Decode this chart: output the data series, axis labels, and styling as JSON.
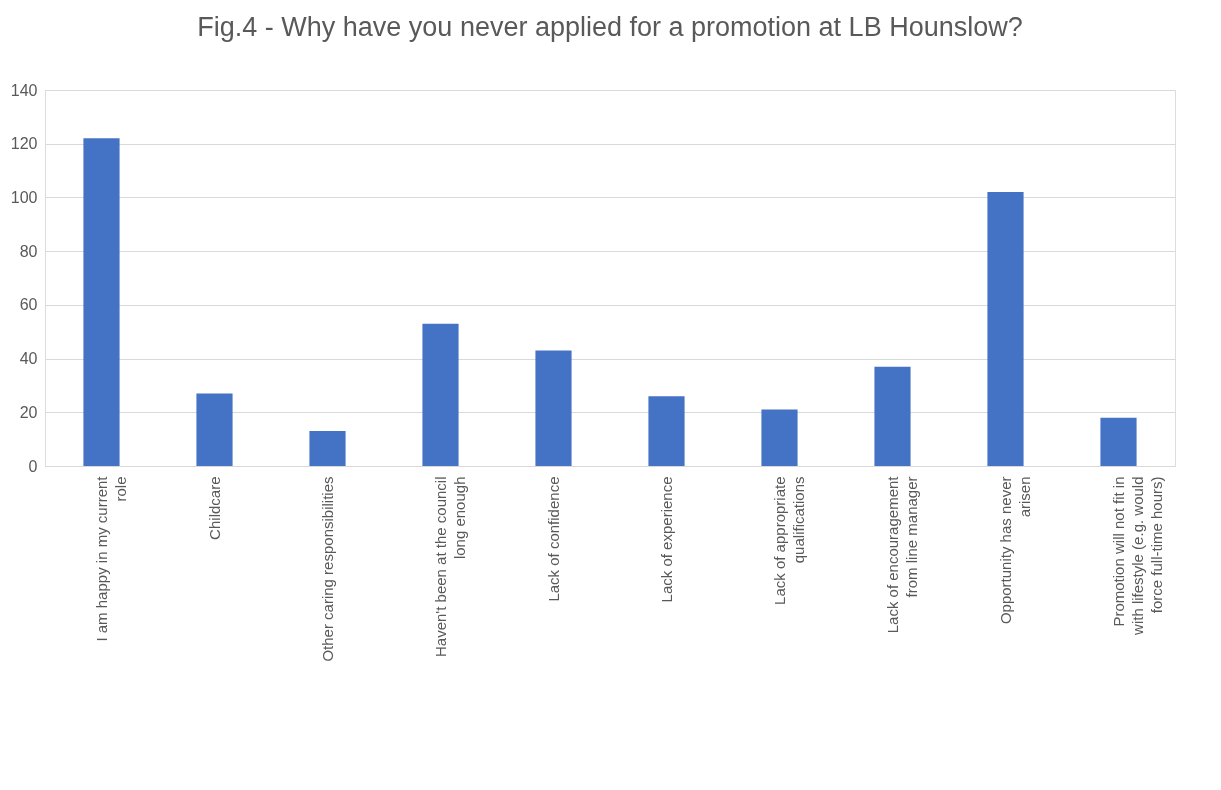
{
  "chart_data": {
    "type": "bar",
    "title": "Fig.4 - Why have you never applied for a promotion at LB Hounslow?",
    "categories": [
      "I am happy in my current role",
      "Childcare",
      "Other caring responsibilities",
      "Haven't been at the council long enough",
      "Lack of confidence",
      "Lack of experience",
      "Lack of appropriate qualifications",
      "Lack of encouragement from line manager",
      "Opportunity has never arisen",
      "Promotion will not fit in with lifestyle (e.g. would force full-time hours)"
    ],
    "values": [
      122,
      27,
      13,
      53,
      43,
      26,
      21,
      37,
      102,
      18
    ],
    "color": "#4472c4",
    "ylim": [
      0,
      140
    ],
    "yticks": [
      0,
      20,
      40,
      60,
      80,
      100,
      120,
      140
    ],
    "grid": "y"
  }
}
